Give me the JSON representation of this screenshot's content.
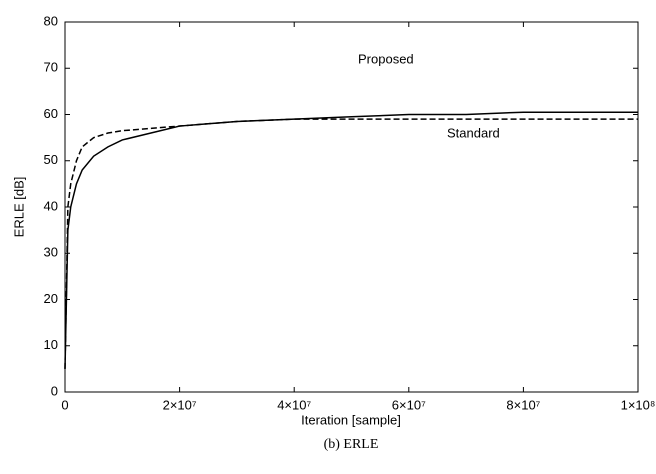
{
  "chart_data": {
    "type": "line",
    "caption": "(b) ERLE",
    "x_label": "Iteration [sample]",
    "y_label": "ERLE [dB]",
    "annotations": [
      "Proposed",
      "Standard"
    ],
    "x": [
      0,
      500000,
      1000000,
      2000000,
      3000000,
      5000000,
      7500000,
      10000000,
      15000000,
      20000000,
      25000000,
      30000000,
      40000000,
      50000000,
      60000000,
      70000000,
      80000000,
      90000000,
      100000000
    ],
    "series": [
      {
        "name": "Proposed",
        "color": "#000000",
        "line_style": "solid",
        "values": [
          5,
          35,
          40,
          45,
          48,
          51,
          53,
          54.5,
          56,
          57.5,
          58,
          58.5,
          59,
          59.5,
          60,
          60,
          60.5,
          60.5,
          60.5
        ]
      },
      {
        "name": "Standard",
        "color": "#000000",
        "line_style": "dashed",
        "values": [
          5,
          40,
          45,
          50,
          53,
          55,
          56,
          56.5,
          57,
          57.5,
          58,
          58.5,
          59,
          59,
          59,
          59,
          59,
          59,
          59
        ]
      }
    ],
    "xlim": [
      0,
      100000000
    ],
    "xticks": [
      0,
      {
        "value": 20000000,
        "label": "2×10⁷"
      },
      {
        "value": 40000000,
        "label": "4×10⁷"
      },
      {
        "value": 60000000,
        "label": "6×10⁷"
      },
      {
        "value": 80000000,
        "label": "8×10⁷"
      },
      {
        "value": 100000000,
        "label": "1×10⁸"
      }
    ],
    "ylim": [
      0,
      80
    ],
    "yticks": [
      0,
      10,
      20,
      30,
      40,
      50,
      60,
      70,
      80
    ],
    "grid": false
  }
}
